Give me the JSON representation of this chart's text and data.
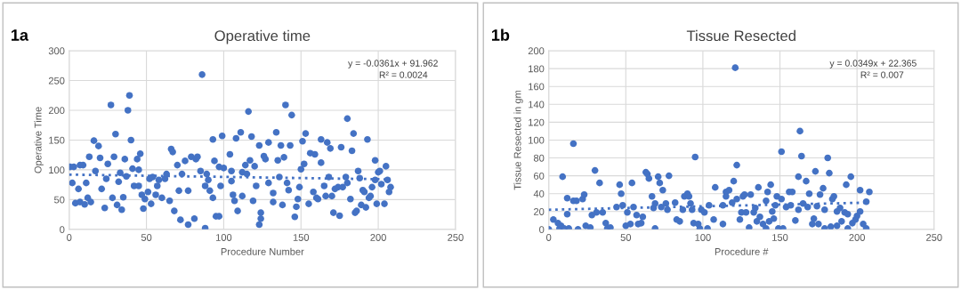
{
  "chart_data": [
    {
      "type": "scatter",
      "title": "Operative time",
      "xlabel": "Procedure Number",
      "ylabel": "Operative Time",
      "xlim": [
        0,
        250
      ],
      "xticks": [
        0,
        50,
        100,
        150,
        200,
        250
      ],
      "ylim": [
        0,
        300
      ],
      "yticks": [
        0,
        50,
        100,
        150,
        200,
        250,
        300
      ],
      "grid": true,
      "legend": false,
      "annotations": [
        "1a",
        "y = -0.0361x + 91.962",
        "R² = 0.0024"
      ],
      "series": [
        {
          "color": "#4472c4",
          "marker": "circle",
          "x": [
            0.6,
            3,
            2,
            4,
            6,
            7,
            9,
            7,
            10,
            11,
            12,
            14,
            13,
            16,
            19,
            17,
            20,
            21,
            23,
            24,
            25,
            27,
            28,
            29,
            30,
            31,
            32,
            33,
            34,
            35,
            36,
            37,
            38,
            39,
            40,
            41,
            42,
            44,
            45,
            46,
            45,
            47,
            48,
            49,
            51,
            52,
            53,
            54,
            56,
            57,
            58,
            60,
            62,
            63,
            65,
            66,
            67,
            68,
            70,
            71,
            72,
            73,
            75,
            77,
            77,
            79,
            81,
            82,
            83,
            85,
            86,
            88,
            88,
            89,
            90,
            91,
            93,
            93,
            94,
            95,
            97,
            97,
            98,
            99,
            100,
            104,
            105,
            105,
            107,
            106,
            108,
            109,
            111,
            112,
            112,
            114,
            115,
            116,
            117,
            118,
            119,
            120,
            121,
            123,
            124,
            124,
            123,
            126,
            127,
            129,
            129,
            132,
            132,
            134,
            135,
            136,
            137,
            138,
            139,
            140,
            141,
            142,
            143,
            144,
            146,
            147,
            148,
            149,
            150,
            151,
            152,
            153,
            155,
            156,
            158,
            159,
            160,
            161,
            163,
            163,
            165,
            166,
            167,
            168,
            169,
            170,
            171,
            172,
            174,
            175,
            176,
            177,
            179,
            180,
            180,
            182,
            183,
            184,
            185,
            186,
            187,
            188,
            189,
            190,
            191,
            192,
            193,
            194,
            195,
            196,
            198,
            198,
            199,
            200,
            201,
            202,
            204,
            205,
            206,
            207,
            208
          ],
          "values": [
            105,
            105,
            78,
            44,
            68,
            108,
            108,
            46,
            42,
            78,
            53,
            46,
            122,
            149,
            140,
            98,
            120,
            68,
            36,
            85,
            110,
            209,
            53,
            122,
            160,
            41,
            80,
            95,
            33,
            54,
            118,
            89,
            200,
            225,
            150,
            102,
            73,
            118,
            73,
            127,
            100,
            58,
            35,
            51,
            63,
            85,
            43,
            88,
            58,
            73,
            83,
            53,
            85,
            93,
            48,
            135,
            130,
            31,
            108,
            65,
            16,
            93,
            115,
            8,
            65,
            122,
            18,
            118,
            122,
            98,
            260,
            73,
            2,
            93,
            83,
            65,
            53,
            151,
            115,
            22,
            22,
            105,
            73,
            157,
            103,
            126,
            98,
            81,
            48,
            58,
            153,
            31,
            163,
            56,
            96,
            108,
            93,
            198,
            116,
            156,
            48,
            106,
            73,
            141,
            28,
            18,
            8,
            123,
            118,
            146,
            78,
            46,
            61,
            163,
            116,
            88,
            141,
            41,
            121,
            209,
            78,
            66,
            141,
            192,
            21,
            38,
            51,
            71,
            101,
            148,
            110,
            161,
            43,
            128,
            63,
            126,
            53,
            51,
            112,
            151,
            73,
            56,
            146,
            88,
            136,
            56,
            28,
            68,
            71,
            23,
            138,
            71,
            88,
            78,
            186,
            51,
            132,
            161,
            28,
            31,
            98,
            86,
            41,
            66,
            63,
            37,
            151,
            53,
            56,
            71,
            116,
            83,
            43,
            96,
            98,
            76,
            43,
            106,
            83,
            63,
            71
          ]
        },
        {
          "type": "line",
          "line_style": "dotted",
          "color": "#4472c4",
          "x": [
            0,
            208
          ],
          "values": [
            92,
            84
          ]
        }
      ]
    },
    {
      "type": "scatter",
      "title": "Tissue Resected",
      "xlabel": "Procedure #",
      "ylabel": "Tissue Resected in gm",
      "xlim": [
        0,
        250
      ],
      "xticks": [
        0,
        50,
        100,
        150,
        200,
        250
      ],
      "ylim": [
        0,
        200
      ],
      "yticks": [
        0,
        20,
        40,
        60,
        80,
        100,
        120,
        140,
        160,
        180,
        200
      ],
      "grid": true,
      "legend": false,
      "annotations": [
        "1b",
        "y = 0.0349x + 22.365",
        "R² = 0.007"
      ],
      "series": [
        {
          "color": "#4472c4",
          "marker": "circle",
          "x": [
            0,
            3,
            6,
            7,
            8,
            9,
            10,
            12,
            12,
            13,
            16,
            16,
            18,
            19,
            22,
            23,
            24,
            27,
            28,
            30,
            31,
            33,
            35,
            37,
            38,
            40,
            44,
            46,
            47,
            48,
            50,
            51,
            53,
            54,
            55,
            57,
            58,
            60,
            61,
            63,
            64,
            65,
            67,
            68,
            69,
            69,
            71,
            72,
            73,
            74,
            76,
            77,
            78,
            82,
            83,
            85,
            87,
            88,
            90,
            91,
            92,
            93,
            94,
            95,
            97,
            98,
            99,
            101,
            103,
            104,
            107,
            108,
            113,
            113,
            115,
            115,
            117,
            119,
            120,
            121,
            122,
            122,
            124,
            125,
            126,
            127,
            128,
            130,
            131,
            133,
            134,
            135,
            136,
            137,
            139,
            141,
            141,
            142,
            143,
            144,
            145,
            146,
            147,
            148,
            149,
            151,
            151,
            152,
            154,
            156,
            157,
            158,
            160,
            162,
            162,
            163,
            164,
            165,
            167,
            168,
            169,
            171,
            172,
            173,
            174,
            175,
            176,
            178,
            179,
            179,
            181,
            182,
            183,
            184,
            185,
            187,
            187,
            189,
            190,
            192,
            193,
            194,
            194,
            196,
            197,
            199,
            200,
            202,
            202,
            204,
            206,
            206,
            208
          ],
          "values": [
            0,
            11,
            7,
            1,
            4,
            59,
            1,
            35,
            17,
            1,
            96,
            32,
            32,
            0,
            34,
            39,
            4,
            2,
            16,
            66,
            19,
            52,
            19,
            7,
            1,
            2,
            25,
            50,
            40,
            27,
            4,
            19,
            6,
            52,
            25,
            16,
            6,
            7,
            14,
            64,
            62,
            57,
            37,
            24,
            29,
            1,
            59,
            52,
            25,
            44,
            29,
            22,
            60,
            30,
            11,
            9,
            22,
            37,
            40,
            37,
            29,
            22,
            7,
            81,
            6,
            1,
            22,
            19,
            1,
            27,
            11,
            47,
            27,
            6,
            42,
            37,
            44,
            30,
            54,
            181,
            72,
            34,
            11,
            19,
            37,
            39,
            19,
            2,
            39,
            19,
            24,
            9,
            47,
            14,
            6,
            1,
            32,
            42,
            9,
            50,
            20,
            12,
            27,
            37,
            1,
            87,
            34,
            1,
            25,
            42,
            27,
            42,
            10,
            59,
            22,
            110,
            82,
            29,
            54,
            25,
            40,
            6,
            12,
            65,
            26,
            6,
            39,
            46,
            1,
            22,
            80,
            63,
            3,
            34,
            37,
            4,
            20,
            24,
            9,
            19,
            50,
            17,
            1,
            59,
            7,
            11,
            15,
            44,
            20,
            6,
            1,
            31,
            42
          ]
        },
        {
          "type": "line",
          "line_style": "dotted",
          "color": "#4472c4",
          "x": [
            0,
            208
          ],
          "values": [
            22,
            30
          ]
        }
      ]
    }
  ]
}
